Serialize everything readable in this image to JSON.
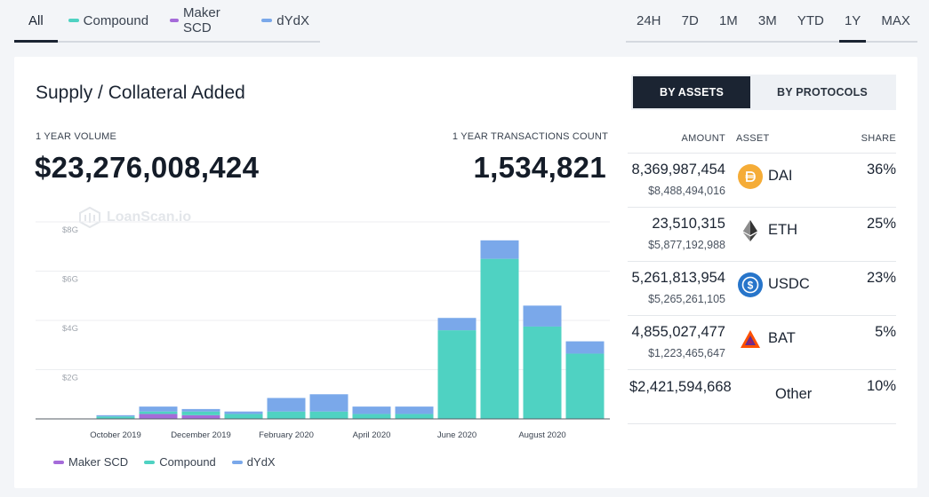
{
  "protocol_filter": {
    "items": [
      {
        "label": "All",
        "active": true
      },
      {
        "label": "Compound",
        "color": "#4fd2c2"
      },
      {
        "label": "Maker SCD",
        "color": "#a56bd9"
      },
      {
        "label": "dYdX",
        "color": "#7aa8ea"
      }
    ]
  },
  "range_filter": {
    "items": [
      "24H",
      "7D",
      "1M",
      "3M",
      "YTD",
      "1Y",
      "MAX"
    ],
    "active": "1Y"
  },
  "card": {
    "title": "Supply / Collateral Added",
    "volume_label": "1 YEAR VOLUME",
    "volume_value": "$23,276,008,424",
    "tx_label": "1 YEAR TRANSACTIONS COUNT",
    "tx_value": "1,534,821",
    "watermark": "LoanScan.io"
  },
  "toggle": {
    "assets": "BY ASSETS",
    "protocols": "BY PROTOCOLS",
    "active": "assets"
  },
  "table": {
    "headers": {
      "amount": "AMOUNT",
      "asset": "ASSET",
      "share": "SHARE"
    },
    "rows": [
      {
        "amount": "8,369,987,454",
        "usd": "$8,488,494,016",
        "asset": "DAI",
        "share": "36%",
        "icon": "dai-icon",
        "color": "#f5ac37"
      },
      {
        "amount": "23,510,315",
        "usd": "$5,877,192,988",
        "asset": "ETH",
        "share": "25%",
        "icon": "eth-icon",
        "color": "#333333"
      },
      {
        "amount": "5,261,813,954",
        "usd": "$5,265,261,105",
        "asset": "USDC",
        "share": "23%",
        "icon": "usdc-icon",
        "color": "#2775ca"
      },
      {
        "amount": "4,855,027,477",
        "usd": "$1,223,465,647",
        "asset": "BAT",
        "share": "5%",
        "icon": "bat-icon",
        "color": "#ff5000"
      }
    ],
    "other": {
      "amount": "$2,421,594,668",
      "asset": "Other",
      "share": "10%"
    }
  },
  "chart_data": {
    "type": "bar",
    "stacked": true,
    "categories": [
      "Sep 2019",
      "Oct 2019",
      "Nov 2019",
      "Dec 2019",
      "Jan 2020",
      "Feb 2020",
      "Mar 2020",
      "Apr 2020",
      "May 2020",
      "Jun 2020",
      "Jul 2020",
      "Aug 2020",
      "Sep 2020"
    ],
    "x_tick_labels": [
      "October 2019",
      "December 2019",
      "February 2020",
      "April 2020",
      "June 2020",
      "August 2020"
    ],
    "y_tick_labels": [
      "$2G",
      "$4G",
      "$6G",
      "$8G"
    ],
    "ylim": [
      0,
      8
    ],
    "ylabel_unit": "G",
    "grid": true,
    "legend_position": "bottom",
    "series": [
      {
        "name": "Maker SCD",
        "color": "#a56bd9",
        "values": [
          0,
          0,
          0.2,
          0.15,
          0,
          0,
          0,
          0,
          0,
          0,
          0,
          0,
          0
        ]
      },
      {
        "name": "Compound",
        "color": "#4fd2c2",
        "values": [
          0,
          0.1,
          0.1,
          0.15,
          0.2,
          0.3,
          0.3,
          0.2,
          0.2,
          3.6,
          6.5,
          3.75,
          2.65
        ]
      },
      {
        "name": "dYdX",
        "color": "#7aa8ea",
        "values": [
          0,
          0.05,
          0.2,
          0.1,
          0.1,
          0.55,
          0.7,
          0.3,
          0.3,
          0.5,
          0.75,
          0.85,
          0.5
        ]
      }
    ]
  }
}
